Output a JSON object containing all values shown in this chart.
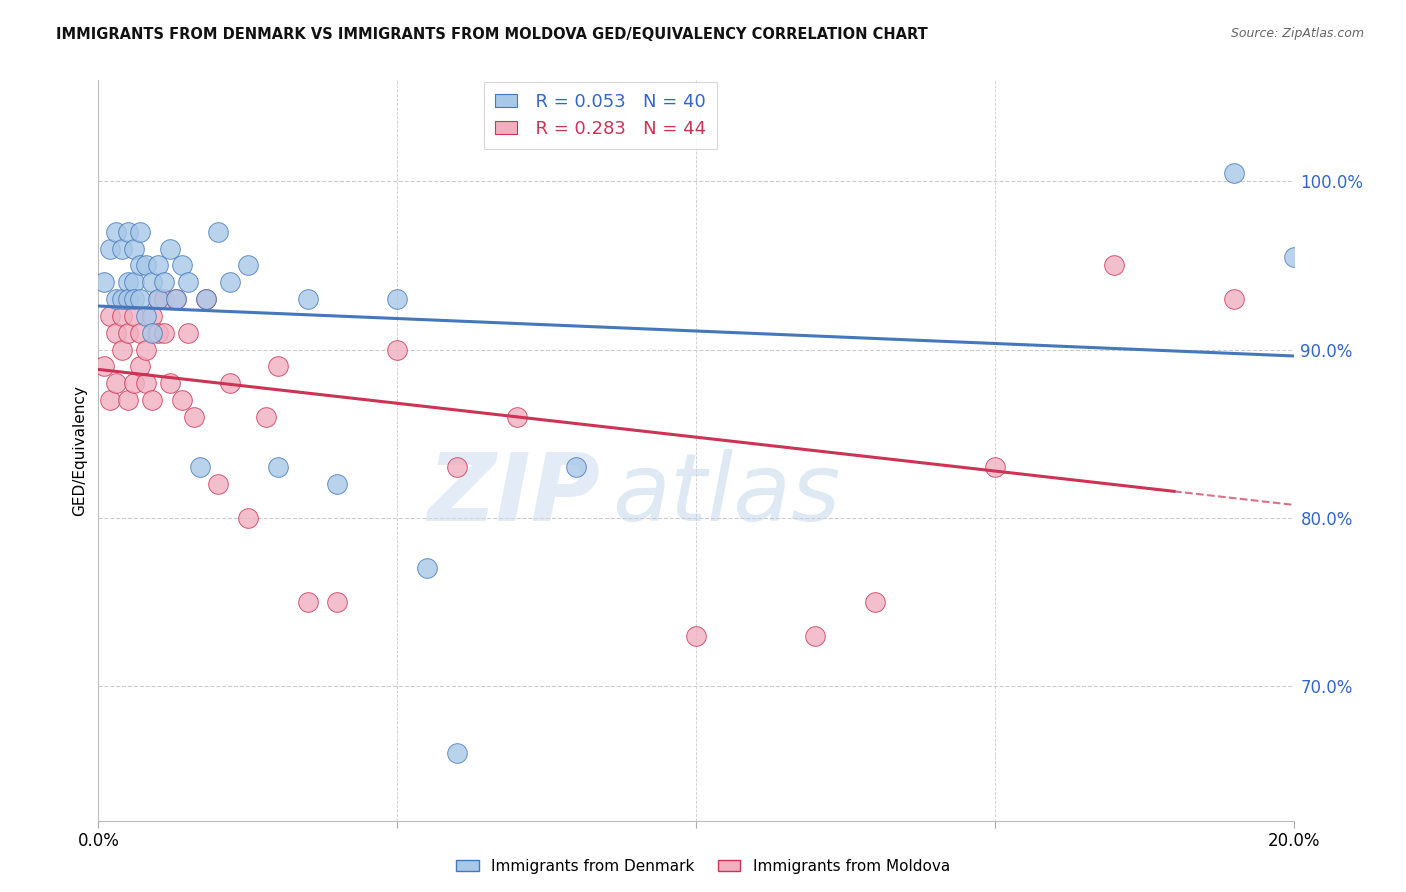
{
  "title": "IMMIGRANTS FROM DENMARK VS IMMIGRANTS FROM MOLDOVA GED/EQUIVALENCY CORRELATION CHART",
  "source": "Source: ZipAtlas.com",
  "ylabel": "GED/Equivalency",
  "ytick_labels": [
    "100.0%",
    "90.0%",
    "80.0%",
    "70.0%"
  ],
  "ytick_values": [
    1.0,
    0.9,
    0.8,
    0.7
  ],
  "xlim": [
    0.0,
    0.2
  ],
  "ylim": [
    0.62,
    1.06
  ],
  "legend_blue_r": "R = 0.053",
  "legend_blue_n": "N = 40",
  "legend_pink_r": "R = 0.283",
  "legend_pink_n": "N = 44",
  "legend_blue_label": "Immigrants from Denmark",
  "legend_pink_label": "Immigrants from Moldova",
  "blue_color": "#a8c8e8",
  "pink_color": "#f0b0c0",
  "blue_line_color": "#4477bb",
  "pink_line_color": "#cc3355",
  "grid_color": "#cccccc",
  "background_color": "#ffffff",
  "watermark_zip": "ZIP",
  "watermark_atlas": "atlas",
  "denmark_x": [
    0.001,
    0.002,
    0.003,
    0.003,
    0.004,
    0.004,
    0.005,
    0.005,
    0.005,
    0.006,
    0.006,
    0.006,
    0.007,
    0.007,
    0.007,
    0.008,
    0.008,
    0.009,
    0.009,
    0.01,
    0.01,
    0.011,
    0.012,
    0.013,
    0.014,
    0.015,
    0.017,
    0.018,
    0.02,
    0.022,
    0.025,
    0.03,
    0.035,
    0.04,
    0.05,
    0.055,
    0.06,
    0.08,
    0.19,
    0.2
  ],
  "denmark_y": [
    0.94,
    0.96,
    0.97,
    0.93,
    0.96,
    0.93,
    0.97,
    0.94,
    0.93,
    0.96,
    0.94,
    0.93,
    0.97,
    0.95,
    0.93,
    0.95,
    0.92,
    0.94,
    0.91,
    0.95,
    0.93,
    0.94,
    0.96,
    0.93,
    0.95,
    0.94,
    0.83,
    0.93,
    0.97,
    0.94,
    0.95,
    0.83,
    0.93,
    0.82,
    0.93,
    0.77,
    0.66,
    0.83,
    1.005,
    0.955
  ],
  "moldova_x": [
    0.001,
    0.002,
    0.002,
    0.003,
    0.003,
    0.004,
    0.004,
    0.005,
    0.005,
    0.005,
    0.006,
    0.006,
    0.007,
    0.007,
    0.008,
    0.008,
    0.009,
    0.009,
    0.01,
    0.01,
    0.011,
    0.011,
    0.012,
    0.013,
    0.014,
    0.015,
    0.016,
    0.018,
    0.02,
    0.022,
    0.025,
    0.028,
    0.03,
    0.035,
    0.04,
    0.05,
    0.06,
    0.07,
    0.1,
    0.12,
    0.13,
    0.15,
    0.17,
    0.19
  ],
  "moldova_y": [
    0.89,
    0.87,
    0.92,
    0.88,
    0.91,
    0.92,
    0.9,
    0.91,
    0.87,
    0.93,
    0.92,
    0.88,
    0.91,
    0.89,
    0.9,
    0.88,
    0.92,
    0.87,
    0.91,
    0.93,
    0.93,
    0.91,
    0.88,
    0.93,
    0.87,
    0.91,
    0.86,
    0.93,
    0.82,
    0.88,
    0.8,
    0.86,
    0.89,
    0.75,
    0.75,
    0.9,
    0.83,
    0.86,
    0.73,
    0.73,
    0.75,
    0.83,
    0.95,
    0.93
  ]
}
